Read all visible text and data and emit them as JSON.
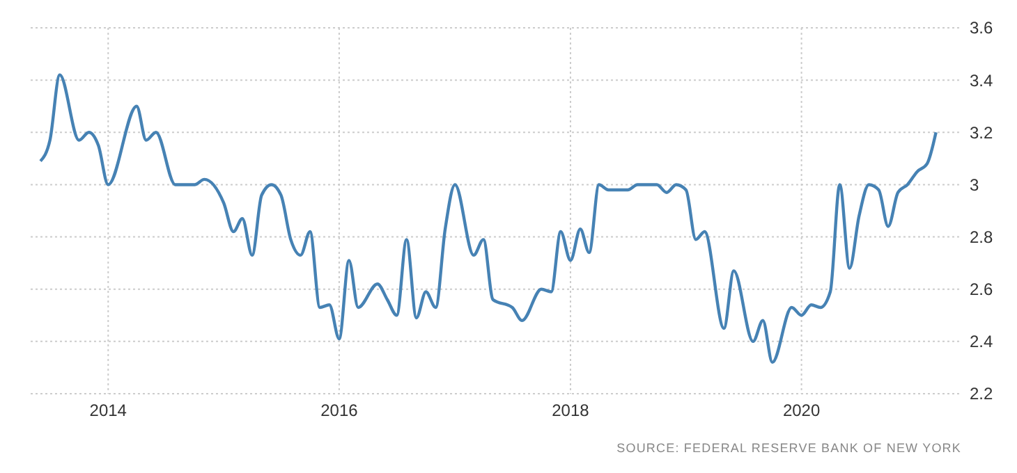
{
  "chart_data": {
    "type": "line",
    "x": [
      "2013-06",
      "2013-07",
      "2013-08",
      "2013-10",
      "2013-11",
      "2013-12",
      "2014-01",
      "2014-04",
      "2014-05",
      "2014-06",
      "2014-08",
      "2014-10",
      "2014-11",
      "2015-01",
      "2015-02",
      "2015-03",
      "2015-04",
      "2015-05",
      "2015-06",
      "2015-07",
      "2015-08",
      "2015-09",
      "2015-10",
      "2015-11",
      "2015-12",
      "2016-01",
      "2016-02",
      "2016-03",
      "2016-05",
      "2016-06",
      "2016-07",
      "2016-08",
      "2016-09",
      "2016-10",
      "2016-11",
      "2016-12",
      "2017-01",
      "2017-03",
      "2017-04",
      "2017-05",
      "2017-07",
      "2017-08",
      "2017-10",
      "2017-11",
      "2017-12",
      "2018-01",
      "2018-02",
      "2018-03",
      "2018-04",
      "2018-05",
      "2018-07",
      "2018-08",
      "2018-10",
      "2018-11",
      "2018-12",
      "2019-01",
      "2019-02",
      "2019-03",
      "2019-05",
      "2019-06",
      "2019-08",
      "2019-09",
      "2019-10",
      "2019-12",
      "2020-01",
      "2020-02",
      "2020-03",
      "2020-04",
      "2020-05",
      "2020-06",
      "2020-07",
      "2020-08",
      "2020-09",
      "2020-10",
      "2020-11",
      "2020-12",
      "2021-01",
      "2021-02",
      "2021-03"
    ],
    "series": [
      {
        "color": "#4682b4",
        "values": [
          3.09,
          3.17,
          3.42,
          3.17,
          3.2,
          3.15,
          3.0,
          3.3,
          3.17,
          3.2,
          3.0,
          3.0,
          3.02,
          2.93,
          2.82,
          2.87,
          2.73,
          2.96,
          3.0,
          2.96,
          2.79,
          2.73,
          2.82,
          2.53,
          2.54,
          2.41,
          2.71,
          2.53,
          2.62,
          2.56,
          2.5,
          2.79,
          2.49,
          2.59,
          2.53,
          2.83,
          3.0,
          2.73,
          2.79,
          2.56,
          2.53,
          2.48,
          2.6,
          2.59,
          2.82,
          2.71,
          2.83,
          2.74,
          3.0,
          2.98,
          2.98,
          3.0,
          3.0,
          2.97,
          3.0,
          2.98,
          2.79,
          2.82,
          2.45,
          2.67,
          2.4,
          2.48,
          2.32,
          2.53,
          2.5,
          2.54,
          2.53,
          2.59,
          3.0,
          2.68,
          2.88,
          3.0,
          2.98,
          2.84,
          2.97,
          3.0,
          3.05,
          3.08,
          3.2
        ]
      }
    ],
    "xlim": [
      "2013-05-01",
      "2021-05-20"
    ],
    "xticks": [
      {
        "value": "2014-01-01",
        "label": "2014"
      },
      {
        "value": "2016-01-01",
        "label": "2016"
      },
      {
        "value": "2018-01-01",
        "label": "2018"
      },
      {
        "value": "2020-01-01",
        "label": "2020"
      }
    ],
    "ylim": [
      2.2,
      3.6
    ],
    "yticks": [
      2.2,
      2.4,
      2.6,
      2.8,
      3,
      3.2,
      3.4,
      3.6
    ],
    "grid": true,
    "annotations": [
      "SOURCE: FEDERAL RESERVE BANK OF NEW YORK"
    ]
  }
}
